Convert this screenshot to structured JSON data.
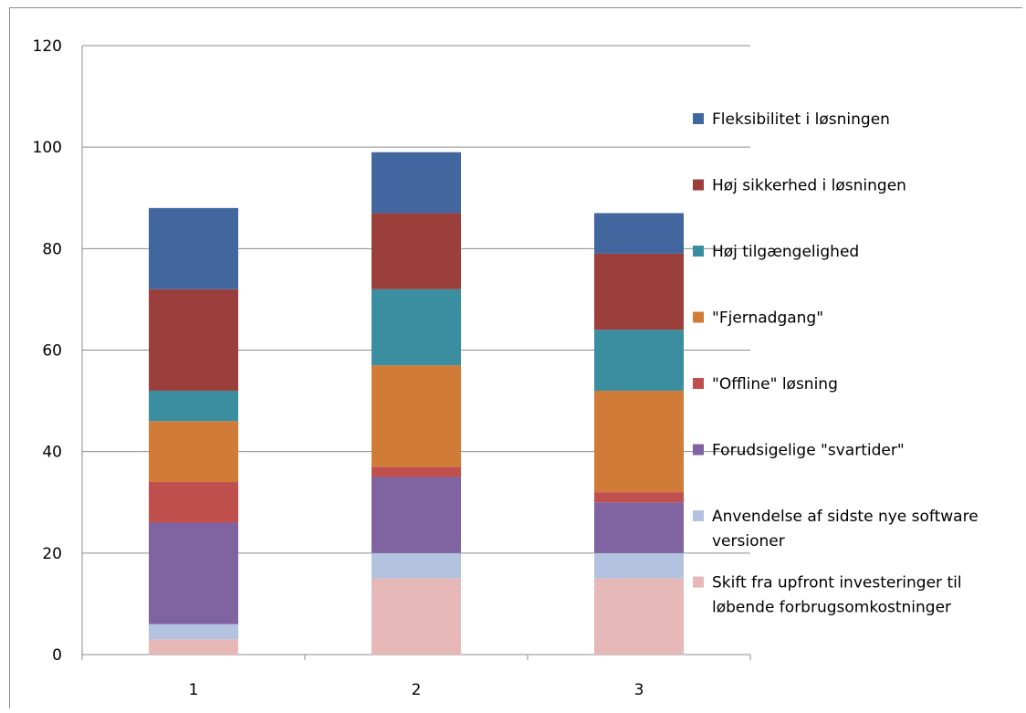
{
  "chart_data": {
    "type": "bar",
    "stacked": true,
    "categories": [
      "1",
      "2",
      "3"
    ],
    "ylim": [
      0,
      120
    ],
    "yticks": [
      0,
      20,
      40,
      60,
      80,
      100,
      120
    ],
    "grid": true,
    "legend_position": "right",
    "series": [
      {
        "name": "Skift fra upfront investeringer til løbende forbrugsomkostninger",
        "color": "#E6B9B8",
        "values": [
          3,
          15,
          15
        ]
      },
      {
        "name": "Anvendelse af sidste nye software versioner",
        "color": "#B3C3DF",
        "values": [
          3,
          5,
          5
        ]
      },
      {
        "name": "Forudsigelige \"svartider\"",
        "color": "#8064A2",
        "values": [
          20,
          15,
          10
        ]
      },
      {
        "name": "\"Offline\" løsning",
        "color": "#C0504D",
        "values": [
          8,
          2,
          2
        ]
      },
      {
        "name": " \"Fjernadgang\"",
        "color": "#D07B37",
        "values": [
          12,
          20,
          20
        ]
      },
      {
        "name": "Høj tilgængelighed",
        "color": "#3A8EA0",
        "values": [
          6,
          15,
          12
        ]
      },
      {
        "name": "Høj sikkerhed i løsningen",
        "color": "#9B3F3D",
        "values": [
          20,
          15,
          15
        ]
      },
      {
        "name": "Fleksibilitet i løsningen",
        "color": "#41679E",
        "values": [
          16,
          12,
          8
        ]
      }
    ],
    "legend_lines": [
      [
        "Fleksibilitet i løsningen"
      ],
      [
        "Høj sikkerhed i løsningen"
      ],
      [
        "Høj tilgængelighed"
      ],
      [
        " \"Fjernadgang\""
      ],
      [
        "\"Offline\" løsning"
      ],
      [
        "Forudsigelige \"svartider\""
      ],
      [
        "Anvendelse af sidste nye software",
        "versioner"
      ],
      [
        "Skift fra upfront investeringer til",
        "løbende forbrugsomkostninger"
      ]
    ],
    "legend_colors": [
      "#41679E",
      "#9B3F3D",
      "#3A8EA0",
      "#D07B37",
      "#C0504D",
      "#8064A2",
      "#B3C3DF",
      "#E6B9B8"
    ]
  }
}
